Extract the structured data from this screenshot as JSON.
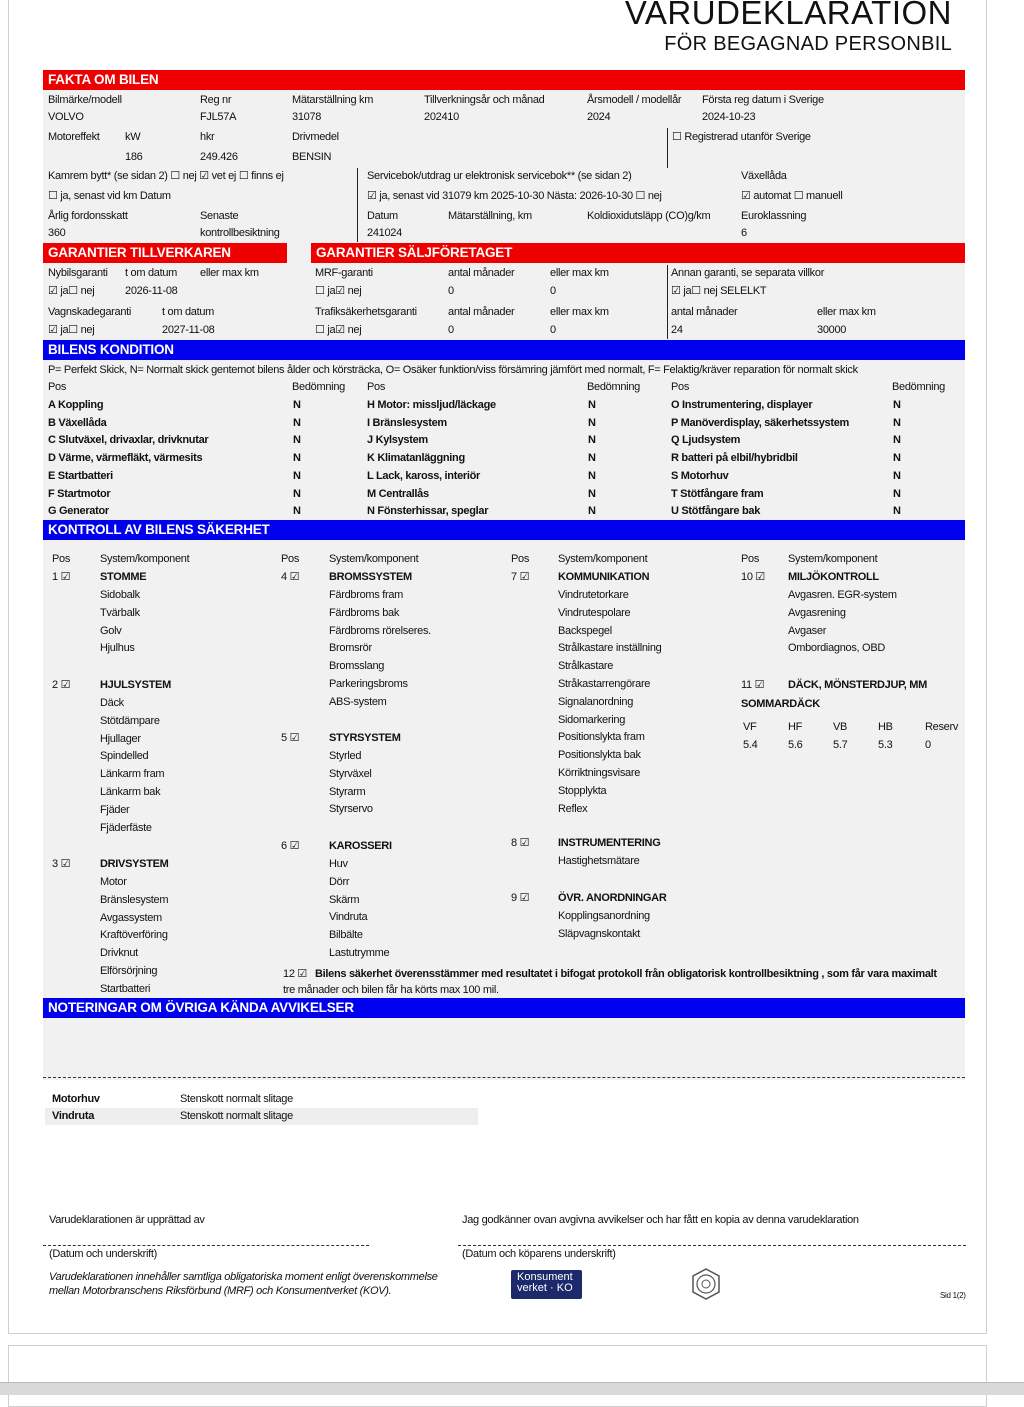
{
  "header": {
    "title": "VARUDEKLARATION",
    "subtitle": "FÖR BEGAGNAD PERSONBIL"
  },
  "fakta": {
    "heading": "FAKTA OM BILEN",
    "labels": {
      "bilmarke": "Bilmärke/modell",
      "regnr": "Reg nr",
      "matar": "Mätarställning km",
      "tillv": "Tillverkningsår och månad",
      "arsmodell": "Årsmodell / modellår",
      "forsta_reg": "Första reg datum i Sverige",
      "motoreffekt": "Motoreffekt",
      "kw": "kW",
      "hkr": "hkr",
      "drivmedel": "Drivmedel",
      "registrerad_utanfor": "☐ Registrerad utanför Sverige",
      "kamrem": "Kamrem bytt* (se sidan 2) ☐ nej ☑ vet ej ☐ finns ej",
      "kamrem_ja": "☐ ja, senast vid km  Datum",
      "servicebok": "Servicebok/utdrag ur elektronisk servicebok** (se sidan 2)",
      "servicebok_ja": "☑ ja, senast vid 31079 km  2025-10-30 Nästa: 2026-10-30 ☐ nej",
      "vaxellada": "Växellåda",
      "vaxellada_val": "☑ automat ☐ manuell",
      "fordonsskatt": "Årlig fordonsskatt",
      "senaste": "Senaste",
      "kontrollbesiktning": "kontrollbesiktning",
      "datum": "Datum",
      "matar2": "Mätarställning, km",
      "co2": "Koldioxidutsläpp (CO)g/km",
      "euro": "Euroklassning"
    },
    "values": {
      "bilmarke": "VOLVO",
      "regnr": "FJL57A",
      "matar": "31078",
      "tillv": "202410",
      "arsmodell": "2024",
      "forsta_reg": "2024-10-23",
      "kw": "186",
      "hkr": "249.426",
      "drivmedel": "BENSIN",
      "fordonsskatt": "360",
      "datum": "241024",
      "euro": "6"
    }
  },
  "garanti_tillv": {
    "heading": "GARANTIER TILLVERKAREN",
    "nybil": "Nybilsgaranti",
    "tom": "t om datum",
    "max_km": "eller max km",
    "nybil_val": "☑ ja☐ nej",
    "nybil_datum": "2026-11-08",
    "vagnskada": "Vagnskadegaranti",
    "vagnskada_tom": "t om datum",
    "vagnskada_val": "☑ ja☐ nej",
    "vagnskada_datum": "2027-11-08"
  },
  "garanti_salj": {
    "heading": "GARANTIER SÄLJFÖRETAGET",
    "mrf": "MRF-garanti",
    "antal": "antal månader",
    "max_km": "eller max km",
    "mrf_val": "☐ ja☑ nej",
    "mrf_man": "0",
    "mrf_km": "0",
    "trafik": "Trafiksäkerhetsgaranti",
    "antal2": "antal månader",
    "max_km2": "eller max km",
    "trafik_val": "☐ ja☑ nej",
    "trafik_man": "0",
    "trafik_km": "0",
    "annan": "Annan garanti, se separata villkor",
    "annan_val": "☑ ja☐ nej SELELKT",
    "annan_antal": "antal månader",
    "annan_max": "eller max km",
    "annan_man": "24",
    "annan_km": "30000"
  },
  "kondition": {
    "heading": "BILENS KONDITION",
    "legend": "P= Perfekt Skick, N= Normalt skick gentemot bilens ålder och körsträcka, O= Osäker funktion/viss försämring jämfört med normalt, F= Felaktig/kräver reparation för normalt skick",
    "col_pos": "Pos",
    "col_bed": "Bedömning",
    "columns": [
      [
        [
          "A Koppling",
          "N"
        ],
        [
          "B Växellåda",
          "N"
        ],
        [
          "C Slutväxel, drivaxlar, drivknutar",
          "N"
        ],
        [
          "D Värme, värmefläkt, värmesits",
          "N"
        ],
        [
          "E Startbatteri",
          "N"
        ],
        [
          "F Startmotor",
          "N"
        ],
        [
          "G Generator",
          "N"
        ]
      ],
      [
        [
          "H Motor: missljud/läckage",
          "N"
        ],
        [
          "I Bränslesystem",
          "N"
        ],
        [
          "J Kylsystem",
          "N"
        ],
        [
          "K Klimatanläggning",
          "N"
        ],
        [
          "L Lack, kaross, interiör",
          "N"
        ],
        [
          "M Centrallås",
          "N"
        ],
        [
          "N Fönsterhissar, speglar",
          "N"
        ]
      ],
      [
        [
          "O Instrumentering, displayer",
          "N"
        ],
        [
          "P Manöverdisplay, säkerhetssystem",
          "N"
        ],
        [
          "Q Ljudsystem",
          "N"
        ],
        [
          "R batteri på elbil/hybridbil",
          "N"
        ],
        [
          "S Motorhuv",
          "N"
        ],
        [
          "T Stötfångare fram",
          "N"
        ],
        [
          "U Stötfångare bak",
          "N"
        ]
      ]
    ]
  },
  "kontroll": {
    "heading": "KONTROLL AV BILENS SÄKERHET",
    "col_pos": "Pos",
    "col_sys": "System/komponent",
    "groups": [
      {
        "pos": "1 ☑",
        "title": "STOMME",
        "items": [
          "Sidobalk",
          "Tvärbalk",
          "Golv",
          "Hjulhus"
        ]
      },
      {
        "pos": "2 ☑",
        "title": "HJULSYSTEM",
        "items": [
          "Däck",
          "Stötdämpare",
          "Hjullager",
          "Spindelled",
          "Länkarm fram",
          "Länkarm bak",
          "Fjäder",
          "Fjäderfäste"
        ]
      },
      {
        "pos": "3 ☑",
        "title": "DRIVSYSTEM",
        "items": [
          "Motor",
          "Bränslesystem",
          "Avgassystem",
          "Kraftöverföring",
          "Drivknut",
          "Elförsörjning",
          "Startbatteri"
        ]
      },
      {
        "pos": "4 ☑",
        "title": "BROMSSYSTEM",
        "items": [
          "Färdbroms fram",
          "Färdbroms bak",
          "Färdbroms rörelseres.",
          "Bromsrör",
          "Bromsslang",
          "Parkeringsbroms",
          "ABS-system"
        ]
      },
      {
        "pos": "5 ☑",
        "title": "STYRSYSTEM",
        "items": [
          "Styrled",
          "Styrväxel",
          "Styrarm",
          "Styrservo"
        ]
      },
      {
        "pos": "6 ☑",
        "title": "KAROSSERI",
        "items": [
          "Huv",
          "Dörr",
          "Skärm",
          "Vindruta",
          "Bilbälte",
          "Lastutrymme"
        ]
      },
      {
        "pos": "7 ☑",
        "title": "KOMMUNIKATION",
        "items": [
          "Vindrutetorkare",
          "Vindrutespolare",
          "Backspegel",
          "Strålkastare inställning",
          "Strålkastare",
          "Stråkastarrengörare",
          "Signalanordning",
          "Sidomarkering",
          "Positionslykta fram",
          "Positionslykta bak",
          "Körriktningsvisare",
          "Stopplykta",
          "Reflex"
        ]
      },
      {
        "pos": "8 ☑",
        "title": "INSTRUMENTERING",
        "items": [
          "Hastighetsmätare"
        ]
      },
      {
        "pos": "9 ☑",
        "title": "ÖVR. ANORDNINGAR",
        "items": [
          "Kopplingsanordning",
          "Släpvagnskontakt"
        ]
      },
      {
        "pos": "10 ☑",
        "title": "MILJÖKONTROLL",
        "items": [
          "Avgasren. EGR-system",
          "Avgasrening",
          "Avgaser",
          "Ombordiagnos, OBD"
        ]
      },
      {
        "pos": "11 ☑",
        "title": "DÄCK, MÖNSTERDJUP, MM",
        "items": []
      }
    ],
    "tyres": {
      "label": "SOMMARDÄCK",
      "headers": [
        "VF",
        "HF",
        "VB",
        "HB",
        "Reserv"
      ],
      "values": [
        "5.4",
        "5.6",
        "5.7",
        "5.3",
        "0"
      ]
    },
    "item12_pos": "12 ☑",
    "item12_text": "Bilens säkerhet överensstämmer med resultatet i bifogat protokoll från obligatorisk kontrollbesiktning , som får vara maximalt",
    "item12_text2": "tre månader och bilen får ha körts max 100 mil."
  },
  "noteringar": {
    "heading": "NOTERINGAR OM ÖVRIGA KÄNDA AVVIKELSER",
    "rows": [
      [
        "Motorhuv",
        "Stenskott normalt slitage"
      ],
      [
        "Vindruta",
        "Stenskott normalt slitage"
      ]
    ]
  },
  "footer": {
    "upprattad": "Varudeklarationen är upprättad av",
    "godkanner": "Jag godkänner ovan avgivna avvikelser och har fått en kopia av denna varudeklaration",
    "datum_underskrift": "(Datum och underskrift)",
    "datum_kopare": "(Datum och köparens underskrift)",
    "disclaimer1": "Varudeklarationen innehåller samtliga obligatoriska moment enligt överenskommelse",
    "disclaimer2": "mellan Motorbranschens Riksförbund (MRF) och Konsumentverket (KOV).",
    "logo_ko_line1": "Konsument",
    "logo_ko_line2": "verket · KO",
    "page": "Sid 1(2)"
  },
  "colors": {
    "red": "#ee0000",
    "blue": "#0000ee",
    "panel": "#f1f1f1"
  }
}
